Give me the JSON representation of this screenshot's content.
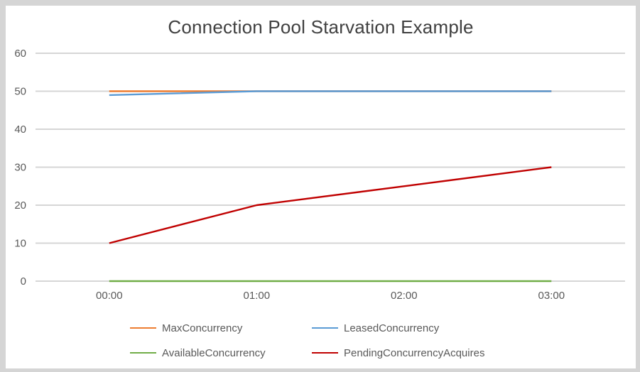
{
  "frame": {
    "border_color": "#d5d5d5",
    "background": "#ffffff"
  },
  "chart_data": {
    "type": "line",
    "title": "Connection Pool Starvation Example",
    "title_color": "#404040",
    "categories": [
      "00:00",
      "01:00",
      "02:00",
      "03:00"
    ],
    "series": [
      {
        "name": "MaxConcurrency",
        "color": "#ED7D31",
        "values": [
          50,
          50,
          50,
          50
        ]
      },
      {
        "name": "LeasedConcurrency",
        "color": "#5B9BD5",
        "values": [
          49,
          50,
          50,
          50
        ]
      },
      {
        "name": "AvailableConcurrency",
        "color": "#70AD47",
        "values": [
          0,
          0,
          0,
          0
        ]
      },
      {
        "name": "PendingConcurrencyAcquires",
        "color": "#C00000",
        "values": [
          10,
          20,
          25,
          30
        ]
      }
    ],
    "xlabel": "",
    "ylabel": "",
    "ylim": [
      0,
      60
    ],
    "yticks": [
      0,
      10,
      20,
      30,
      40,
      50,
      60
    ],
    "grid": true,
    "gridline_color": "#d6d6d6",
    "axis_label_color": "#595959",
    "axis_font_size": 15,
    "legend_position": "bottom"
  }
}
